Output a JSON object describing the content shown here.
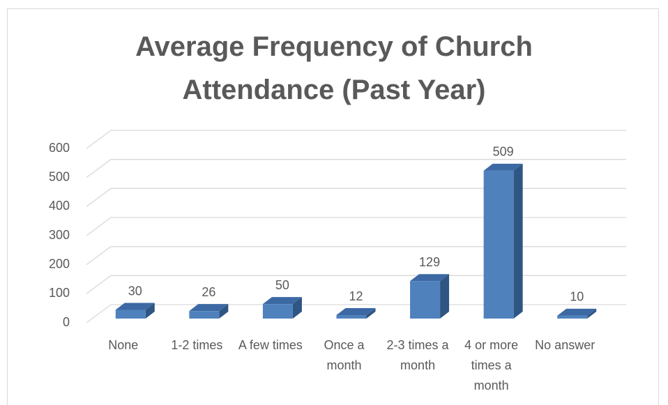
{
  "chart_data": {
    "type": "bar3d",
    "title": "Average Frequency of Church Attendance (Past Year)",
    "categories": [
      "None",
      "1-2 times",
      "A few times",
      "Once a month",
      "2-3 times a month",
      "4 or more times a month",
      "No answer"
    ],
    "values": [
      30,
      26,
      50,
      12,
      129,
      509,
      10
    ],
    "color": "#4f81bd",
    "ylim": [
      0,
      600
    ],
    "yticks": [
      0,
      100,
      200,
      300,
      400,
      500,
      600
    ],
    "grid": true
  }
}
